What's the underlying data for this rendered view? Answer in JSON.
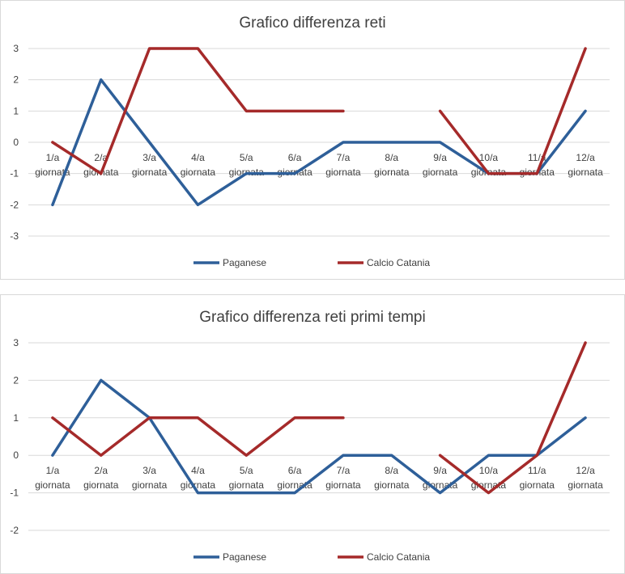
{
  "charts": [
    {
      "title": "Grafico differenza reti",
      "ylim": [
        -3,
        3
      ],
      "yticks": [
        "3",
        "2",
        "1",
        "0",
        "-1",
        "-2",
        "-3"
      ],
      "category_lines": [
        [
          "1/a",
          "giornata"
        ],
        [
          "2/a",
          "giornata"
        ],
        [
          "3/a",
          "giornata"
        ],
        [
          "4/a",
          "giornata"
        ],
        [
          "5/a",
          "giornata"
        ],
        [
          "6/a",
          "giornata"
        ],
        [
          "7/a",
          "giornata"
        ],
        [
          "8/a",
          "giornata"
        ],
        [
          "9/a",
          "giornata"
        ],
        [
          "10/a",
          "giornata"
        ],
        [
          "11/a",
          "giornata"
        ],
        [
          "12/a",
          "giornata"
        ]
      ],
      "legend": [
        "Paganese",
        "Calcio Catania"
      ]
    },
    {
      "title": "Grafico differenza reti primi tempi",
      "ylim": [
        -2,
        3
      ],
      "yticks": [
        "3",
        "2",
        "1",
        "0",
        "-1",
        "-2"
      ],
      "category_lines": [
        [
          "1/a",
          "giornata"
        ],
        [
          "2/a",
          "giornata"
        ],
        [
          "3/a",
          "giornata"
        ],
        [
          "4/a",
          "giornata"
        ],
        [
          "5/a",
          "giornata"
        ],
        [
          "6/a",
          "giornata"
        ],
        [
          "7/a",
          "giornata"
        ],
        [
          "8/a",
          "giornata"
        ],
        [
          "9/a",
          "giornata"
        ],
        [
          "10/a",
          "giornata"
        ],
        [
          "11/a",
          "giornata"
        ],
        [
          "12/a",
          "giornata"
        ]
      ],
      "legend": [
        "Paganese",
        "Calcio Catania"
      ]
    }
  ],
  "chart_data": [
    {
      "type": "line",
      "title": "Grafico differenza reti",
      "categories": [
        "1/a giornata",
        "2/a giornata",
        "3/a giornata",
        "4/a giornata",
        "5/a giornata",
        "6/a giornata",
        "7/a giornata",
        "8/a giornata",
        "9/a giornata",
        "10/a giornata",
        "11/a giornata",
        "12/a giornata"
      ],
      "ylim": [
        -3,
        3
      ],
      "grid": true,
      "legend_position": "bottom",
      "series": [
        {
          "name": "Paganese",
          "color": "#2e5f99",
          "values": [
            -2,
            2,
            0,
            -2,
            -1,
            -1,
            0,
            0,
            0,
            -1,
            -1,
            1
          ]
        },
        {
          "name": "Calcio Catania",
          "color": "#a52a2a",
          "values": [
            0,
            -1,
            3,
            3,
            1,
            1,
            1,
            null,
            1,
            -1,
            -1,
            3
          ]
        }
      ]
    },
    {
      "type": "line",
      "title": "Grafico differenza reti primi tempi",
      "categories": [
        "1/a giornata",
        "2/a giornata",
        "3/a giornata",
        "4/a giornata",
        "5/a giornata",
        "6/a giornata",
        "7/a giornata",
        "8/a giornata",
        "9/a giornata",
        "10/a giornata",
        "11/a giornata",
        "12/a giornata"
      ],
      "ylim": [
        -2,
        3
      ],
      "grid": true,
      "legend_position": "bottom",
      "series": [
        {
          "name": "Paganese",
          "color": "#2e5f99",
          "values": [
            0,
            2,
            1,
            -1,
            -1,
            -1,
            0,
            0,
            -1,
            0,
            0,
            1
          ]
        },
        {
          "name": "Calcio Catania",
          "color": "#a52a2a",
          "values": [
            1,
            0,
            1,
            1,
            0,
            1,
            1,
            null,
            0,
            -1,
            0,
            3
          ]
        }
      ]
    }
  ]
}
